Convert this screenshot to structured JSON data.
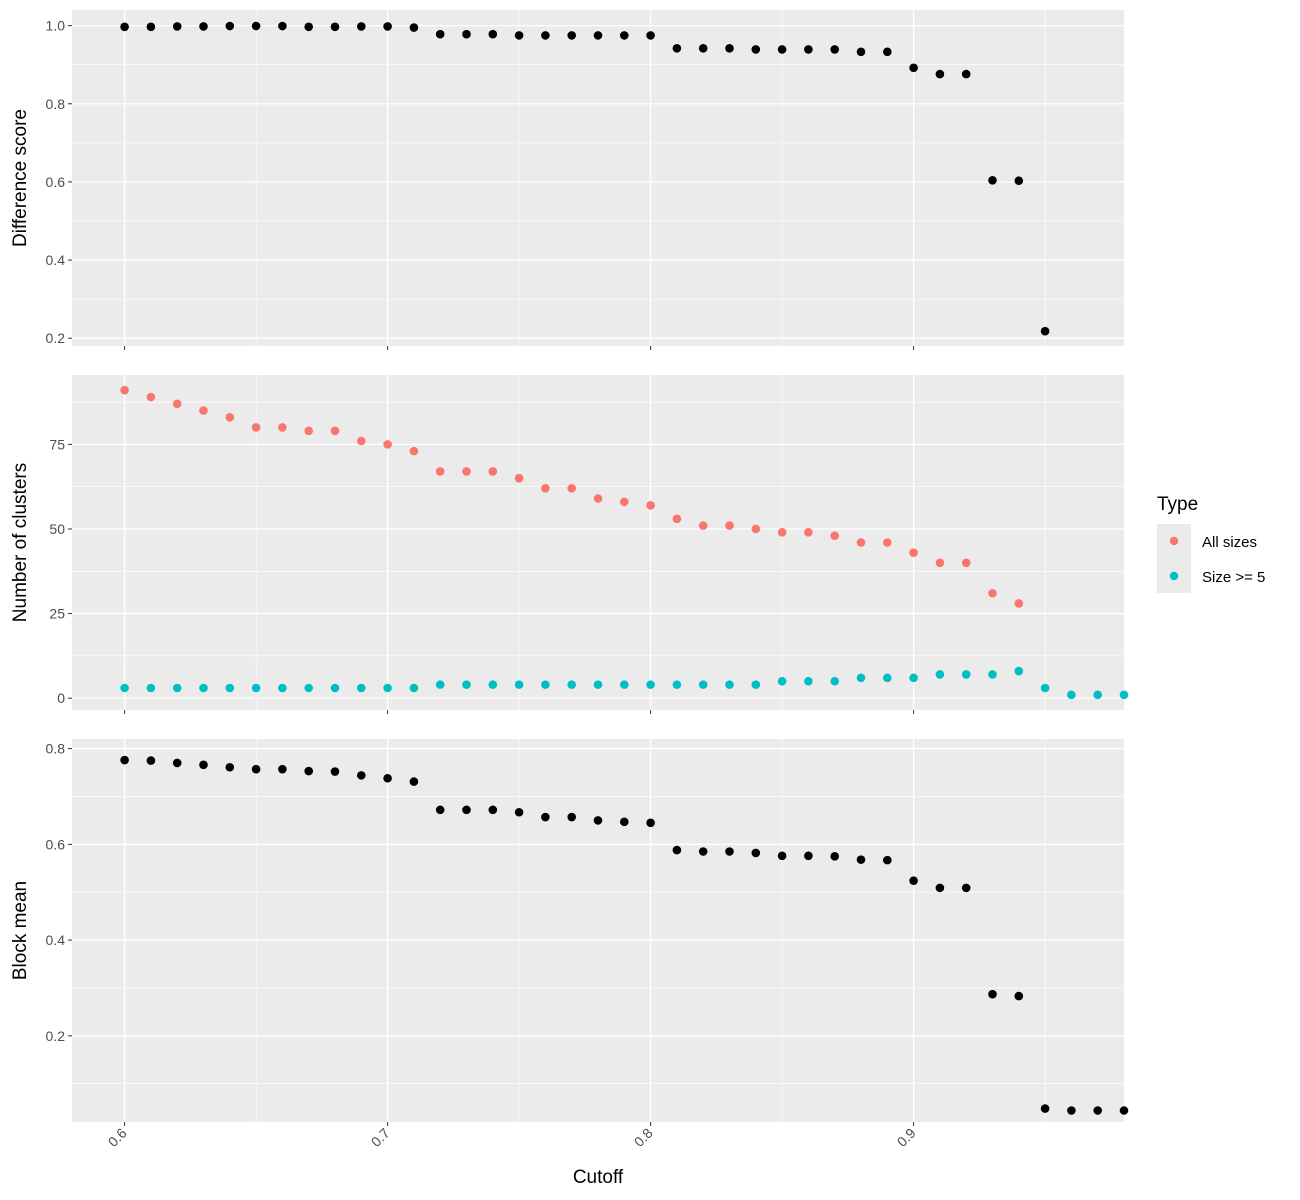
{
  "chart_data": [
    {
      "type": "scatter",
      "title": "",
      "xlabel": "",
      "ylabel": "Difference score",
      "xlim": [
        0.58,
        0.98
      ],
      "ylim": [
        0.18,
        1.04
      ],
      "yticks": [
        0.2,
        0.4,
        0.6,
        0.8,
        1.0
      ],
      "ytick_labels": [
        "0.2",
        "0.4",
        "0.6",
        "0.8",
        "1.0"
      ],
      "xticks": [
        0.6,
        0.7,
        0.8,
        0.9
      ],
      "grid": true,
      "series": [
        {
          "color": "#000000",
          "x": [
            0.6,
            0.61,
            0.62,
            0.63,
            0.64,
            0.65,
            0.66,
            0.67,
            0.68,
            0.69,
            0.7,
            0.71,
            0.72,
            0.73,
            0.74,
            0.75,
            0.76,
            0.77,
            0.78,
            0.79,
            0.8,
            0.81,
            0.82,
            0.83,
            0.84,
            0.85,
            0.86,
            0.87,
            0.88,
            0.89,
            0.9,
            0.91,
            0.92,
            0.93,
            0.94,
            0.95
          ],
          "y": [
            0.997,
            0.997,
            0.998,
            0.998,
            0.999,
            0.999,
            0.999,
            0.997,
            0.997,
            0.998,
            0.998,
            0.995,
            0.978,
            0.978,
            0.978,
            0.975,
            0.975,
            0.975,
            0.975,
            0.975,
            0.975,
            0.942,
            0.942,
            0.942,
            0.939,
            0.939,
            0.939,
            0.939,
            0.933,
            0.933,
            0.892,
            0.876,
            0.876,
            0.604,
            0.603,
            0.218
          ]
        }
      ]
    },
    {
      "type": "scatter",
      "title": "",
      "xlabel": "",
      "ylabel": "Number of clusters",
      "xlim": [
        0.58,
        0.98
      ],
      "ylim": [
        -3.5,
        95.5
      ],
      "yticks": [
        0,
        25,
        50,
        75
      ],
      "ytick_labels": [
        "0",
        "25",
        "50",
        "75"
      ],
      "xticks": [
        0.6,
        0.7,
        0.8,
        0.9
      ],
      "grid": true,
      "legend": {
        "title": "Type",
        "position": "right",
        "entries": [
          {
            "label": "All sizes",
            "color": "#F8766D"
          },
          {
            "label": "Size >= 5",
            "color": "#00BFC4"
          }
        ]
      },
      "series": [
        {
          "name": "All sizes",
          "color": "#F8766D",
          "x": [
            0.6,
            0.61,
            0.62,
            0.63,
            0.64,
            0.65,
            0.66,
            0.67,
            0.68,
            0.69,
            0.7,
            0.71,
            0.72,
            0.73,
            0.74,
            0.75,
            0.76,
            0.77,
            0.78,
            0.79,
            0.8,
            0.81,
            0.82,
            0.83,
            0.84,
            0.85,
            0.86,
            0.87,
            0.88,
            0.89,
            0.9,
            0.91,
            0.92,
            0.93,
            0.94
          ],
          "y": [
            91,
            89,
            87,
            85,
            83,
            80,
            80,
            79,
            79,
            76,
            75,
            73,
            67,
            67,
            67,
            65,
            62,
            62,
            59,
            58,
            57,
            53,
            51,
            51,
            50,
            49,
            49,
            48,
            46,
            46,
            43,
            40,
            40,
            31,
            28
          ]
        },
        {
          "name": "Size >= 5",
          "color": "#00BFC4",
          "x": [
            0.6,
            0.61,
            0.62,
            0.63,
            0.64,
            0.65,
            0.66,
            0.67,
            0.68,
            0.69,
            0.7,
            0.71,
            0.72,
            0.73,
            0.74,
            0.75,
            0.76,
            0.77,
            0.78,
            0.79,
            0.8,
            0.81,
            0.82,
            0.83,
            0.84,
            0.85,
            0.86,
            0.87,
            0.88,
            0.89,
            0.9,
            0.91,
            0.92,
            0.93,
            0.94,
            0.95,
            0.96,
            0.97,
            0.98
          ],
          "y": [
            3,
            3,
            3,
            3,
            3,
            3,
            3,
            3,
            3,
            3,
            3,
            3,
            4,
            4,
            4,
            4,
            4,
            4,
            4,
            4,
            4,
            4,
            4,
            4,
            4,
            5,
            5,
            5,
            6,
            6,
            6,
            7,
            7,
            7,
            8,
            3,
            1,
            1,
            1
          ]
        }
      ]
    },
    {
      "type": "scatter",
      "title": "",
      "xlabel": "Cutoff",
      "ylabel": "Block mean",
      "xlim": [
        0.58,
        0.98
      ],
      "ylim": [
        0.02,
        0.82
      ],
      "yticks": [
        0.2,
        0.4,
        0.6,
        0.8
      ],
      "ytick_labels": [
        "0.2",
        "0.4",
        "0.6",
        "0.8"
      ],
      "xticks": [
        0.6,
        0.7,
        0.8,
        0.9
      ],
      "xtick_labels": [
        "0.6",
        "0.7",
        "0.8",
        "0.9"
      ],
      "grid": true,
      "series": [
        {
          "color": "#000000",
          "x": [
            0.6,
            0.61,
            0.62,
            0.63,
            0.64,
            0.65,
            0.66,
            0.67,
            0.68,
            0.69,
            0.7,
            0.71,
            0.72,
            0.73,
            0.74,
            0.75,
            0.76,
            0.77,
            0.78,
            0.79,
            0.8,
            0.81,
            0.82,
            0.83,
            0.84,
            0.85,
            0.86,
            0.87,
            0.88,
            0.89,
            0.9,
            0.91,
            0.92,
            0.93,
            0.94,
            0.95,
            0.96,
            0.97,
            0.98
          ],
          "y": [
            0.776,
            0.775,
            0.77,
            0.766,
            0.761,
            0.757,
            0.757,
            0.753,
            0.752,
            0.744,
            0.738,
            0.731,
            0.672,
            0.672,
            0.672,
            0.667,
            0.657,
            0.657,
            0.65,
            0.647,
            0.645,
            0.588,
            0.585,
            0.585,
            0.582,
            0.576,
            0.576,
            0.575,
            0.568,
            0.567,
            0.524,
            0.509,
            0.509,
            0.287,
            0.283,
            0.048,
            0.044,
            0.044,
            0.044
          ]
        }
      ]
    }
  ]
}
